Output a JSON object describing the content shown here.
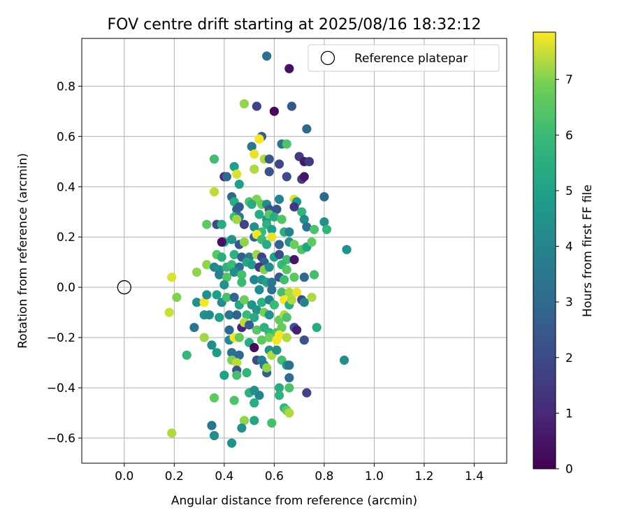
{
  "chart_data": {
    "type": "scatter",
    "title": "FOV centre drift starting at 2025/08/16 18:32:12",
    "xlabel": "Angular distance from reference (arcmin)",
    "ylabel": "Rotation from reference (arcmin)",
    "xlim": [
      -0.17,
      1.53
    ],
    "ylim": [
      -0.7,
      0.99
    ],
    "xticks": [
      0.0,
      0.2,
      0.4,
      0.6,
      0.8,
      1.0,
      1.2,
      1.4
    ],
    "xtick_labels": [
      "0.0",
      "0.2",
      "0.4",
      "0.6",
      "0.8",
      "1.0",
      "1.2",
      "1.4"
    ],
    "yticks": [
      -0.6,
      -0.4,
      -0.2,
      0.0,
      0.2,
      0.4,
      0.6,
      0.8
    ],
    "ytick_labels": [
      "−0.6",
      "−0.4",
      "−0.2",
      "0.0",
      "0.2",
      "0.4",
      "0.6",
      "0.8"
    ],
    "grid": true,
    "legend": {
      "placement": "top-right",
      "entries": [
        "Reference platepar"
      ]
    },
    "reference_point": {
      "x": 0.0,
      "y": 0.0
    },
    "colorbar": {
      "label": "Hours from first FF file",
      "colormap": "viridis",
      "range": [
        0,
        7.85
      ],
      "ticks": [
        0,
        1,
        2,
        3,
        4,
        5,
        6,
        7
      ],
      "tick_labels": [
        "0",
        "1",
        "2",
        "3",
        "4",
        "5",
        "6",
        "7"
      ]
    },
    "points": [
      [
        0.57,
        0.92,
        3.2
      ],
      [
        0.66,
        0.87,
        0.4
      ],
      [
        0.48,
        0.73,
        7.1
      ],
      [
        0.53,
        0.72,
        1.8
      ],
      [
        0.6,
        0.7,
        0.2
      ],
      [
        0.67,
        0.72,
        2.5
      ],
      [
        0.73,
        0.63,
        3.0
      ],
      [
        0.55,
        0.6,
        2.6
      ],
      [
        0.54,
        0.59,
        7.8
      ],
      [
        0.63,
        0.57,
        3.4
      ],
      [
        0.65,
        0.57,
        6.3
      ],
      [
        0.51,
        0.56,
        3.5
      ],
      [
        0.52,
        0.53,
        7.7
      ],
      [
        0.7,
        0.52,
        1.6
      ],
      [
        0.72,
        0.5,
        0.6
      ],
      [
        0.74,
        0.5,
        1.5
      ],
      [
        0.56,
        0.51,
        7.3
      ],
      [
        0.58,
        0.51,
        2.4
      ],
      [
        0.62,
        0.49,
        1.9
      ],
      [
        0.36,
        0.51,
        6.1
      ],
      [
        0.44,
        0.48,
        5.0
      ],
      [
        0.52,
        0.47,
        7.3
      ],
      [
        0.4,
        0.44,
        1.0
      ],
      [
        0.41,
        0.44,
        3.0
      ],
      [
        0.45,
        0.45,
        7.6
      ],
      [
        0.58,
        0.46,
        2.2
      ],
      [
        0.65,
        0.44,
        2.0
      ],
      [
        0.71,
        0.43,
        1.7
      ],
      [
        0.72,
        0.44,
        0.5
      ],
      [
        0.46,
        0.41,
        5.0
      ],
      [
        0.36,
        0.38,
        7.4
      ],
      [
        0.43,
        0.36,
        3.0
      ],
      [
        0.44,
        0.34,
        5.5
      ],
      [
        0.5,
        0.34,
        6.3
      ],
      [
        0.53,
        0.35,
        7.0
      ],
      [
        0.55,
        0.33,
        6.8
      ],
      [
        0.57,
        0.33,
        4.2
      ],
      [
        0.62,
        0.35,
        4.0
      ],
      [
        0.68,
        0.35,
        7.6
      ],
      [
        0.69,
        0.34,
        4.6
      ],
      [
        0.8,
        0.36,
        3.0
      ],
      [
        0.45,
        0.31,
        2.7
      ],
      [
        0.46,
        0.32,
        2.5
      ],
      [
        0.51,
        0.33,
        5.4
      ],
      [
        0.58,
        0.31,
        2.4
      ],
      [
        0.61,
        0.31,
        2.3
      ],
      [
        0.68,
        0.32,
        1.4
      ],
      [
        0.44,
        0.28,
        6.0
      ],
      [
        0.46,
        0.28,
        3.6
      ],
      [
        0.54,
        0.29,
        5.4
      ],
      [
        0.57,
        0.27,
        4.7
      ],
      [
        0.58,
        0.29,
        6.5
      ],
      [
        0.6,
        0.28,
        5.5
      ],
      [
        0.63,
        0.27,
        6.4
      ],
      [
        0.71,
        0.3,
        5.8
      ],
      [
        0.72,
        0.27,
        4.2
      ],
      [
        0.33,
        0.25,
        6.6
      ],
      [
        0.37,
        0.25,
        2.0
      ],
      [
        0.39,
        0.25,
        5.4
      ],
      [
        0.45,
        0.27,
        7.2
      ],
      [
        0.48,
        0.25,
        1.8
      ],
      [
        0.52,
        0.24,
        4.3
      ],
      [
        0.55,
        0.22,
        6.0
      ],
      [
        0.57,
        0.25,
        5.6
      ],
      [
        0.59,
        0.23,
        4.9
      ],
      [
        0.64,
        0.22,
        5.5
      ],
      [
        0.66,
        0.22,
        3.9
      ],
      [
        0.73,
        0.24,
        3.3
      ],
      [
        0.76,
        0.23,
        6.3
      ],
      [
        0.8,
        0.26,
        4.4
      ],
      [
        0.81,
        0.23,
        5.8
      ],
      [
        0.4,
        0.18,
        5.3
      ],
      [
        0.43,
        0.19,
        4.6
      ],
      [
        0.46,
        0.17,
        2.4
      ],
      [
        0.48,
        0.18,
        7.1
      ],
      [
        0.52,
        0.2,
        2.8
      ],
      [
        0.53,
        0.21,
        7.8
      ],
      [
        0.55,
        0.19,
        6.0
      ],
      [
        0.57,
        0.17,
        5.4
      ],
      [
        0.59,
        0.2,
        7.7
      ],
      [
        0.62,
        0.17,
        2.8
      ],
      [
        0.66,
        0.18,
        4.5
      ],
      [
        0.68,
        0.17,
        6.8
      ],
      [
        0.71,
        0.15,
        6.4
      ],
      [
        0.73,
        0.16,
        5.1
      ],
      [
        0.75,
        0.18,
        6.6
      ],
      [
        0.39,
        0.18,
        0.4
      ],
      [
        0.89,
        0.15,
        4.5
      ],
      [
        0.37,
        0.13,
        6.5
      ],
      [
        0.39,
        0.12,
        5.5
      ],
      [
        0.44,
        0.13,
        5.6
      ],
      [
        0.47,
        0.12,
        2.6
      ],
      [
        0.5,
        0.12,
        3.7
      ],
      [
        0.53,
        0.13,
        7.2
      ],
      [
        0.55,
        0.12,
        1.8
      ],
      [
        0.56,
        0.1,
        2.7
      ],
      [
        0.6,
        0.12,
        5.0
      ],
      [
        0.62,
        0.13,
        2.1
      ],
      [
        0.65,
        0.11,
        6.1
      ],
      [
        0.68,
        0.11,
        0.5
      ],
      [
        0.33,
        0.09,
        7.1
      ],
      [
        0.36,
        0.08,
        4.1
      ],
      [
        0.38,
        0.07,
        4.3
      ],
      [
        0.41,
        0.08,
        5.7
      ],
      [
        0.43,
        0.09,
        6.0
      ],
      [
        0.46,
        0.08,
        3.3
      ],
      [
        0.49,
        0.1,
        5.2
      ],
      [
        0.51,
        0.09,
        4.8
      ],
      [
        0.54,
        0.08,
        1.4
      ],
      [
        0.56,
        0.07,
        7.0
      ],
      [
        0.58,
        0.08,
        4.2
      ],
      [
        0.63,
        0.09,
        5.9
      ],
      [
        0.65,
        0.07,
        6.5
      ],
      [
        0.29,
        0.06,
        7.1
      ],
      [
        0.38,
        0.05,
        3.8
      ],
      [
        0.41,
        0.04,
        6.4
      ],
      [
        0.44,
        0.06,
        4.4
      ],
      [
        0.47,
        0.05,
        6.2
      ],
      [
        0.52,
        0.03,
        4.0
      ],
      [
        0.55,
        0.03,
        4.5
      ],
      [
        0.57,
        0.02,
        5.0
      ],
      [
        0.59,
        0.02,
        3.5
      ],
      [
        0.62,
        0.04,
        2.4
      ],
      [
        0.64,
        0.03,
        6.1
      ],
      [
        0.68,
        0.04,
        6.5
      ],
      [
        0.72,
        0.04,
        3.0
      ],
      [
        0.76,
        0.05,
        6.2
      ],
      [
        0.4,
        0.01,
        4.5
      ],
      [
        0.47,
        0.02,
        6.0
      ],
      [
        0.54,
        -0.01,
        4.2
      ],
      [
        0.59,
        -0.01,
        3.3
      ],
      [
        0.63,
        -0.02,
        6.2
      ],
      [
        0.66,
        -0.02,
        7.3
      ],
      [
        0.69,
        -0.02,
        7.7
      ],
      [
        0.71,
        -0.05,
        1.8
      ],
      [
        0.19,
        0.04,
        7.6
      ],
      [
        0.21,
        -0.04,
        7.0
      ],
      [
        0.29,
        -0.06,
        4.4
      ],
      [
        0.32,
        -0.06,
        7.8
      ],
      [
        0.33,
        -0.03,
        4.5
      ],
      [
        0.37,
        -0.03,
        4.9
      ],
      [
        0.39,
        -0.06,
        4.2
      ],
      [
        0.41,
        -0.04,
        6.2
      ],
      [
        0.44,
        -0.04,
        2.9
      ],
      [
        0.46,
        -0.07,
        5.2
      ],
      [
        0.48,
        -0.05,
        6.8
      ],
      [
        0.51,
        -0.07,
        4.5
      ],
      [
        0.53,
        -0.09,
        4.6
      ],
      [
        0.55,
        -0.06,
        5.6
      ],
      [
        0.58,
        -0.05,
        3.9
      ],
      [
        0.6,
        -0.07,
        6.0
      ],
      [
        0.64,
        -0.05,
        7.8
      ],
      [
        0.66,
        -0.07,
        5.4
      ],
      [
        0.67,
        -0.05,
        7.3
      ],
      [
        0.72,
        -0.06,
        4.0
      ],
      [
        0.75,
        -0.04,
        7.3
      ],
      [
        0.18,
        -0.1,
        7.5
      ],
      [
        0.32,
        -0.11,
        4.5
      ],
      [
        0.34,
        -0.11,
        4.2
      ],
      [
        0.38,
        -0.12,
        5.0
      ],
      [
        0.42,
        -0.11,
        3.5
      ],
      [
        0.45,
        -0.11,
        2.8
      ],
      [
        0.49,
        -0.11,
        6.0
      ],
      [
        0.52,
        -0.12,
        5.3
      ],
      [
        0.56,
        -0.1,
        6.9
      ],
      [
        0.58,
        -0.11,
        4.5
      ],
      [
        0.62,
        -0.13,
        6.7
      ],
      [
        0.64,
        -0.11,
        7.3
      ],
      [
        0.65,
        -0.12,
        6.3
      ],
      [
        0.28,
        -0.16,
        3.4
      ],
      [
        0.42,
        -0.17,
        3.0
      ],
      [
        0.47,
        -0.16,
        0.9
      ],
      [
        0.48,
        -0.14,
        7.4
      ],
      [
        0.5,
        -0.15,
        2.6
      ],
      [
        0.53,
        -0.17,
        6.5
      ],
      [
        0.56,
        -0.16,
        5.6
      ],
      [
        0.58,
        -0.18,
        5.9
      ],
      [
        0.61,
        -0.18,
        6.4
      ],
      [
        0.63,
        -0.16,
        6.7
      ],
      [
        0.68,
        -0.16,
        2.3
      ],
      [
        0.69,
        -0.17,
        0.8
      ],
      [
        0.77,
        -0.16,
        5.4
      ],
      [
        0.32,
        -0.2,
        7.2
      ],
      [
        0.35,
        -0.23,
        4.3
      ],
      [
        0.37,
        -0.26,
        4.8
      ],
      [
        0.42,
        -0.21,
        4.2
      ],
      [
        0.44,
        -0.2,
        7.8
      ],
      [
        0.46,
        -0.2,
        6.7
      ],
      [
        0.5,
        -0.22,
        5.4
      ],
      [
        0.52,
        -0.24,
        0.3
      ],
      [
        0.55,
        -0.21,
        6.6
      ],
      [
        0.58,
        -0.2,
        6.9
      ],
      [
        0.61,
        -0.21,
        7.8
      ],
      [
        0.62,
        -0.19,
        7.8
      ],
      [
        0.65,
        -0.2,
        7.3
      ],
      [
        0.72,
        -0.21,
        2.3
      ],
      [
        0.25,
        -0.27,
        5.9
      ],
      [
        0.43,
        -0.26,
        3.3
      ],
      [
        0.46,
        -0.27,
        3.0
      ],
      [
        0.53,
        -0.29,
        2.1
      ],
      [
        0.55,
        -0.29,
        3.9
      ],
      [
        0.58,
        -0.25,
        4.5
      ],
      [
        0.59,
        -0.27,
        7.3
      ],
      [
        0.61,
        -0.25,
        4.4
      ],
      [
        0.63,
        -0.29,
        6.2
      ],
      [
        0.65,
        -0.31,
        4.6
      ],
      [
        0.66,
        -0.31,
        3.3
      ],
      [
        0.88,
        -0.29,
        4.4
      ],
      [
        0.43,
        -0.29,
        7.0
      ],
      [
        0.45,
        -0.3,
        7.4
      ],
      [
        0.56,
        -0.31,
        3.6
      ],
      [
        0.57,
        -0.34,
        2.7
      ],
      [
        0.45,
        -0.33,
        2.2
      ],
      [
        0.4,
        -0.35,
        5.0
      ],
      [
        0.45,
        -0.35,
        6.2
      ],
      [
        0.49,
        -0.34,
        5.8
      ],
      [
        0.57,
        -0.32,
        7.1
      ],
      [
        0.66,
        -0.36,
        3.1
      ],
      [
        0.62,
        -0.4,
        5.4
      ],
      [
        0.66,
        -0.4,
        6.3
      ],
      [
        0.73,
        -0.42,
        1.8
      ],
      [
        0.5,
        -0.42,
        5.6
      ],
      [
        0.52,
        -0.41,
        4.4
      ],
      [
        0.54,
        -0.43,
        4.0
      ],
      [
        0.36,
        -0.44,
        6.6
      ],
      [
        0.44,
        -0.45,
        6.3
      ],
      [
        0.52,
        -0.46,
        5.4
      ],
      [
        0.62,
        -0.43,
        5.6
      ],
      [
        0.64,
        -0.48,
        5.8
      ],
      [
        0.65,
        -0.49,
        6.6
      ],
      [
        0.66,
        -0.5,
        7.3
      ],
      [
        0.48,
        -0.53,
        7.1
      ],
      [
        0.52,
        -0.53,
        5.2
      ],
      [
        0.59,
        -0.54,
        6.2
      ],
      [
        0.35,
        -0.55,
        3.5
      ],
      [
        0.47,
        -0.56,
        4.4
      ],
      [
        0.36,
        -0.59,
        4.3
      ],
      [
        0.19,
        -0.58,
        7.3
      ],
      [
        0.43,
        -0.62,
        4.5
      ]
    ]
  }
}
